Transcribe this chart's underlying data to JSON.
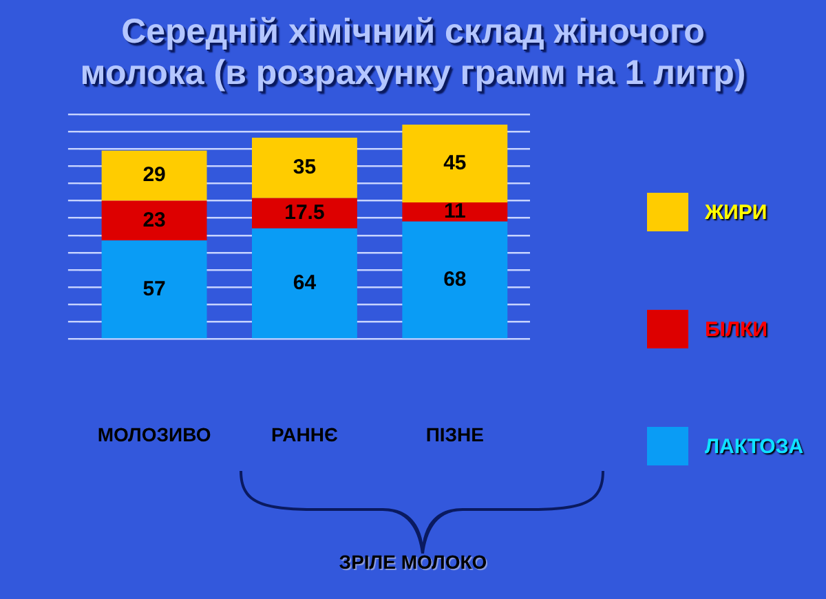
{
  "chart_data": {
    "type": "bar",
    "title": "Середній хімічний склад жіночого молока (в розрахунку грамм на 1 литр)",
    "categories": [
      "МОЛОЗИВО",
      "РАННЄ",
      "ПІЗНЕ"
    ],
    "stacked": true,
    "series": [
      {
        "name": "ЛАКТОЗА",
        "color": "#0a9cf5",
        "values": [
          57,
          64,
          68
        ]
      },
      {
        "name": "БІЛКИ",
        "color": "#dd0000",
        "values": [
          23,
          17.5,
          11
        ]
      },
      {
        "name": "ЖИРИ",
        "color": "#ffcc00",
        "values": [
          29,
          35,
          45
        ]
      }
    ],
    "ylim": [
      0,
      130
    ],
    "yticks": [
      {
        "value": 0,
        "label": null
      },
      {
        "value": 10,
        "label": null
      },
      {
        "value": 20,
        "label": null
      },
      {
        "value": 30,
        "label": null
      },
      {
        "value": 40,
        "label": null
      },
      {
        "value": 50,
        "label": null
      },
      {
        "value": 60,
        "label": null
      },
      {
        "value": 70,
        "label": null
      },
      {
        "value": 80,
        "label": null
      },
      {
        "value": 90,
        "label": null
      },
      {
        "value": 100,
        "label": null
      },
      {
        "value": 110,
        "label": null
      },
      {
        "value": 120,
        "label": null
      },
      {
        "value": 130,
        "label": null
      }
    ],
    "tick_labels": "x",
    "grid": "y",
    "legend": "right",
    "data_labels": true,
    "annotations": [
      "ЗРІЛЕ МОЛОКО"
    ]
  }
}
